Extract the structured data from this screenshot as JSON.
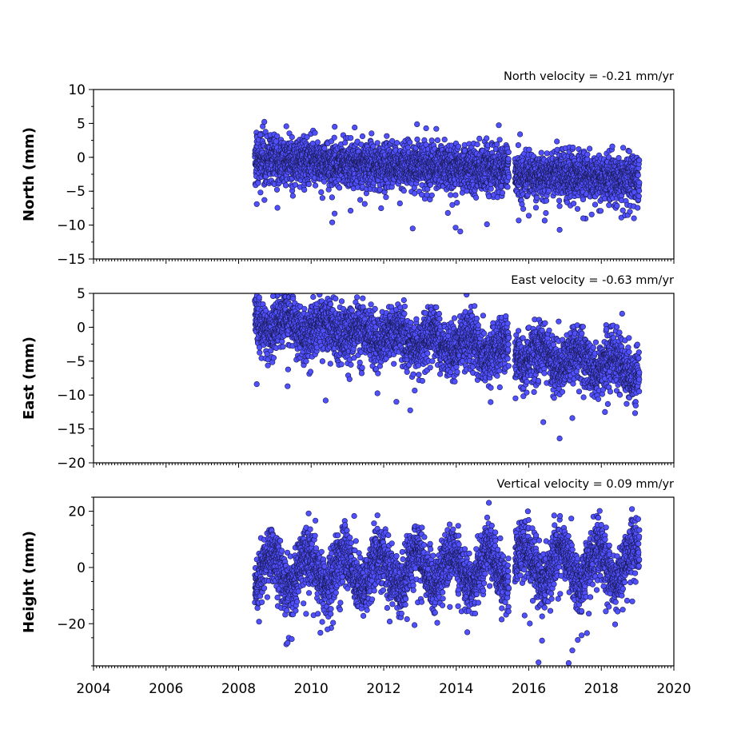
{
  "chart_data": [
    {
      "type": "scatter",
      "title": "North velocity = -0.21 mm/yr",
      "ylabel": "North (mm)",
      "xlim": [
        2004,
        2020
      ],
      "ylim": [
        -15,
        10
      ],
      "yticks": [
        10,
        5,
        0,
        -5,
        -10,
        -15
      ],
      "yticks_labels": [
        "10",
        "5",
        "0",
        "−5",
        "−10",
        "−15"
      ],
      "x_range_data": [
        2008.45,
        2019.05
      ],
      "data_gap": [
        2015.45,
        2015.62
      ],
      "series": [
        {
          "trend": {
            "start": -0.3,
            "rate_mm_per_yr": -0.21
          },
          "points": [
            [
              2008.6,
              3.3
            ],
            [
              2010.65,
              4.5
            ],
            [
              2011.2,
              4.4
            ],
            [
              2013.45,
              4.2
            ],
            [
              2012.8,
              -10.5
            ],
            [
              2016.85,
              -10.7
            ],
            [
              2008.5,
              -6.9
            ],
            [
              2017.5,
              -9.0
            ],
            [
              2018.9,
              -9.0
            ]
          ]
        }
      ],
      "marker_color": "#5050ff",
      "grid": false
    },
    {
      "type": "scatter",
      "title": "East velocity = -0.63 mm/yr",
      "ylabel": "East (mm)",
      "xlim": [
        2004,
        2020
      ],
      "ylim": [
        -20,
        5
      ],
      "yticks": [
        5,
        0,
        -5,
        -10,
        -15,
        -20
      ],
      "yticks_labels": [
        "5",
        "0",
        "−5",
        "−10",
        "−15",
        "−20"
      ],
      "x_range_data": [
        2008.45,
        2019.05
      ],
      "data_gap": [
        2015.45,
        2015.62
      ],
      "series": [
        {
          "trend": {
            "start": 1.0,
            "rate_mm_per_yr": -0.63
          },
          "points": [
            [
              2008.95,
              4.6
            ],
            [
              2008.5,
              -8.4
            ],
            [
              2009.35,
              -8.7
            ],
            [
              2010.4,
              -10.8
            ],
            [
              2016.85,
              -16.4
            ],
            [
              2016.4,
              -14.0
            ],
            [
              2017.2,
              -13.4
            ],
            [
              2018.1,
              -12.5
            ],
            [
              2012.35,
              -11.0
            ]
          ]
        }
      ],
      "marker_color": "#5050ff",
      "grid": false
    },
    {
      "type": "scatter",
      "title": "Vertical velocity = 0.09 mm/yr",
      "ylabel": "Height (mm)",
      "xlim": [
        2004,
        2020
      ],
      "ylim": [
        -35,
        25
      ],
      "yticks": [
        20,
        0,
        -20
      ],
      "yticks_labels": [
        "20",
        "0",
        "−20"
      ],
      "xticks": [
        2004,
        2006,
        2008,
        2010,
        2012,
        2014,
        2016,
        2018,
        2020
      ],
      "xticks_labels": [
        "2004",
        "2006",
        "2008",
        "2010",
        "2012",
        "2014",
        "2016",
        "2018",
        "2020"
      ],
      "x_range_data": [
        2008.45,
        2019.05
      ],
      "data_gap": [
        2015.45,
        2015.62
      ],
      "series": [
        {
          "trend": {
            "start": -1.0,
            "rate_mm_per_yr": 0.09
          },
          "points": [
            [
              2014.9,
              23.0
            ],
            [
              2016.7,
              18.5
            ],
            [
              2009.35,
              -26.8
            ],
            [
              2017.1,
              -34.0
            ],
            [
              2017.2,
              -29.5
            ],
            [
              2017.35,
              -25.8
            ],
            [
              2012.85,
              -20.5
            ],
            [
              2010.45,
              -22.0
            ]
          ]
        }
      ],
      "marker_color": "#5050ff",
      "grid": false
    }
  ]
}
